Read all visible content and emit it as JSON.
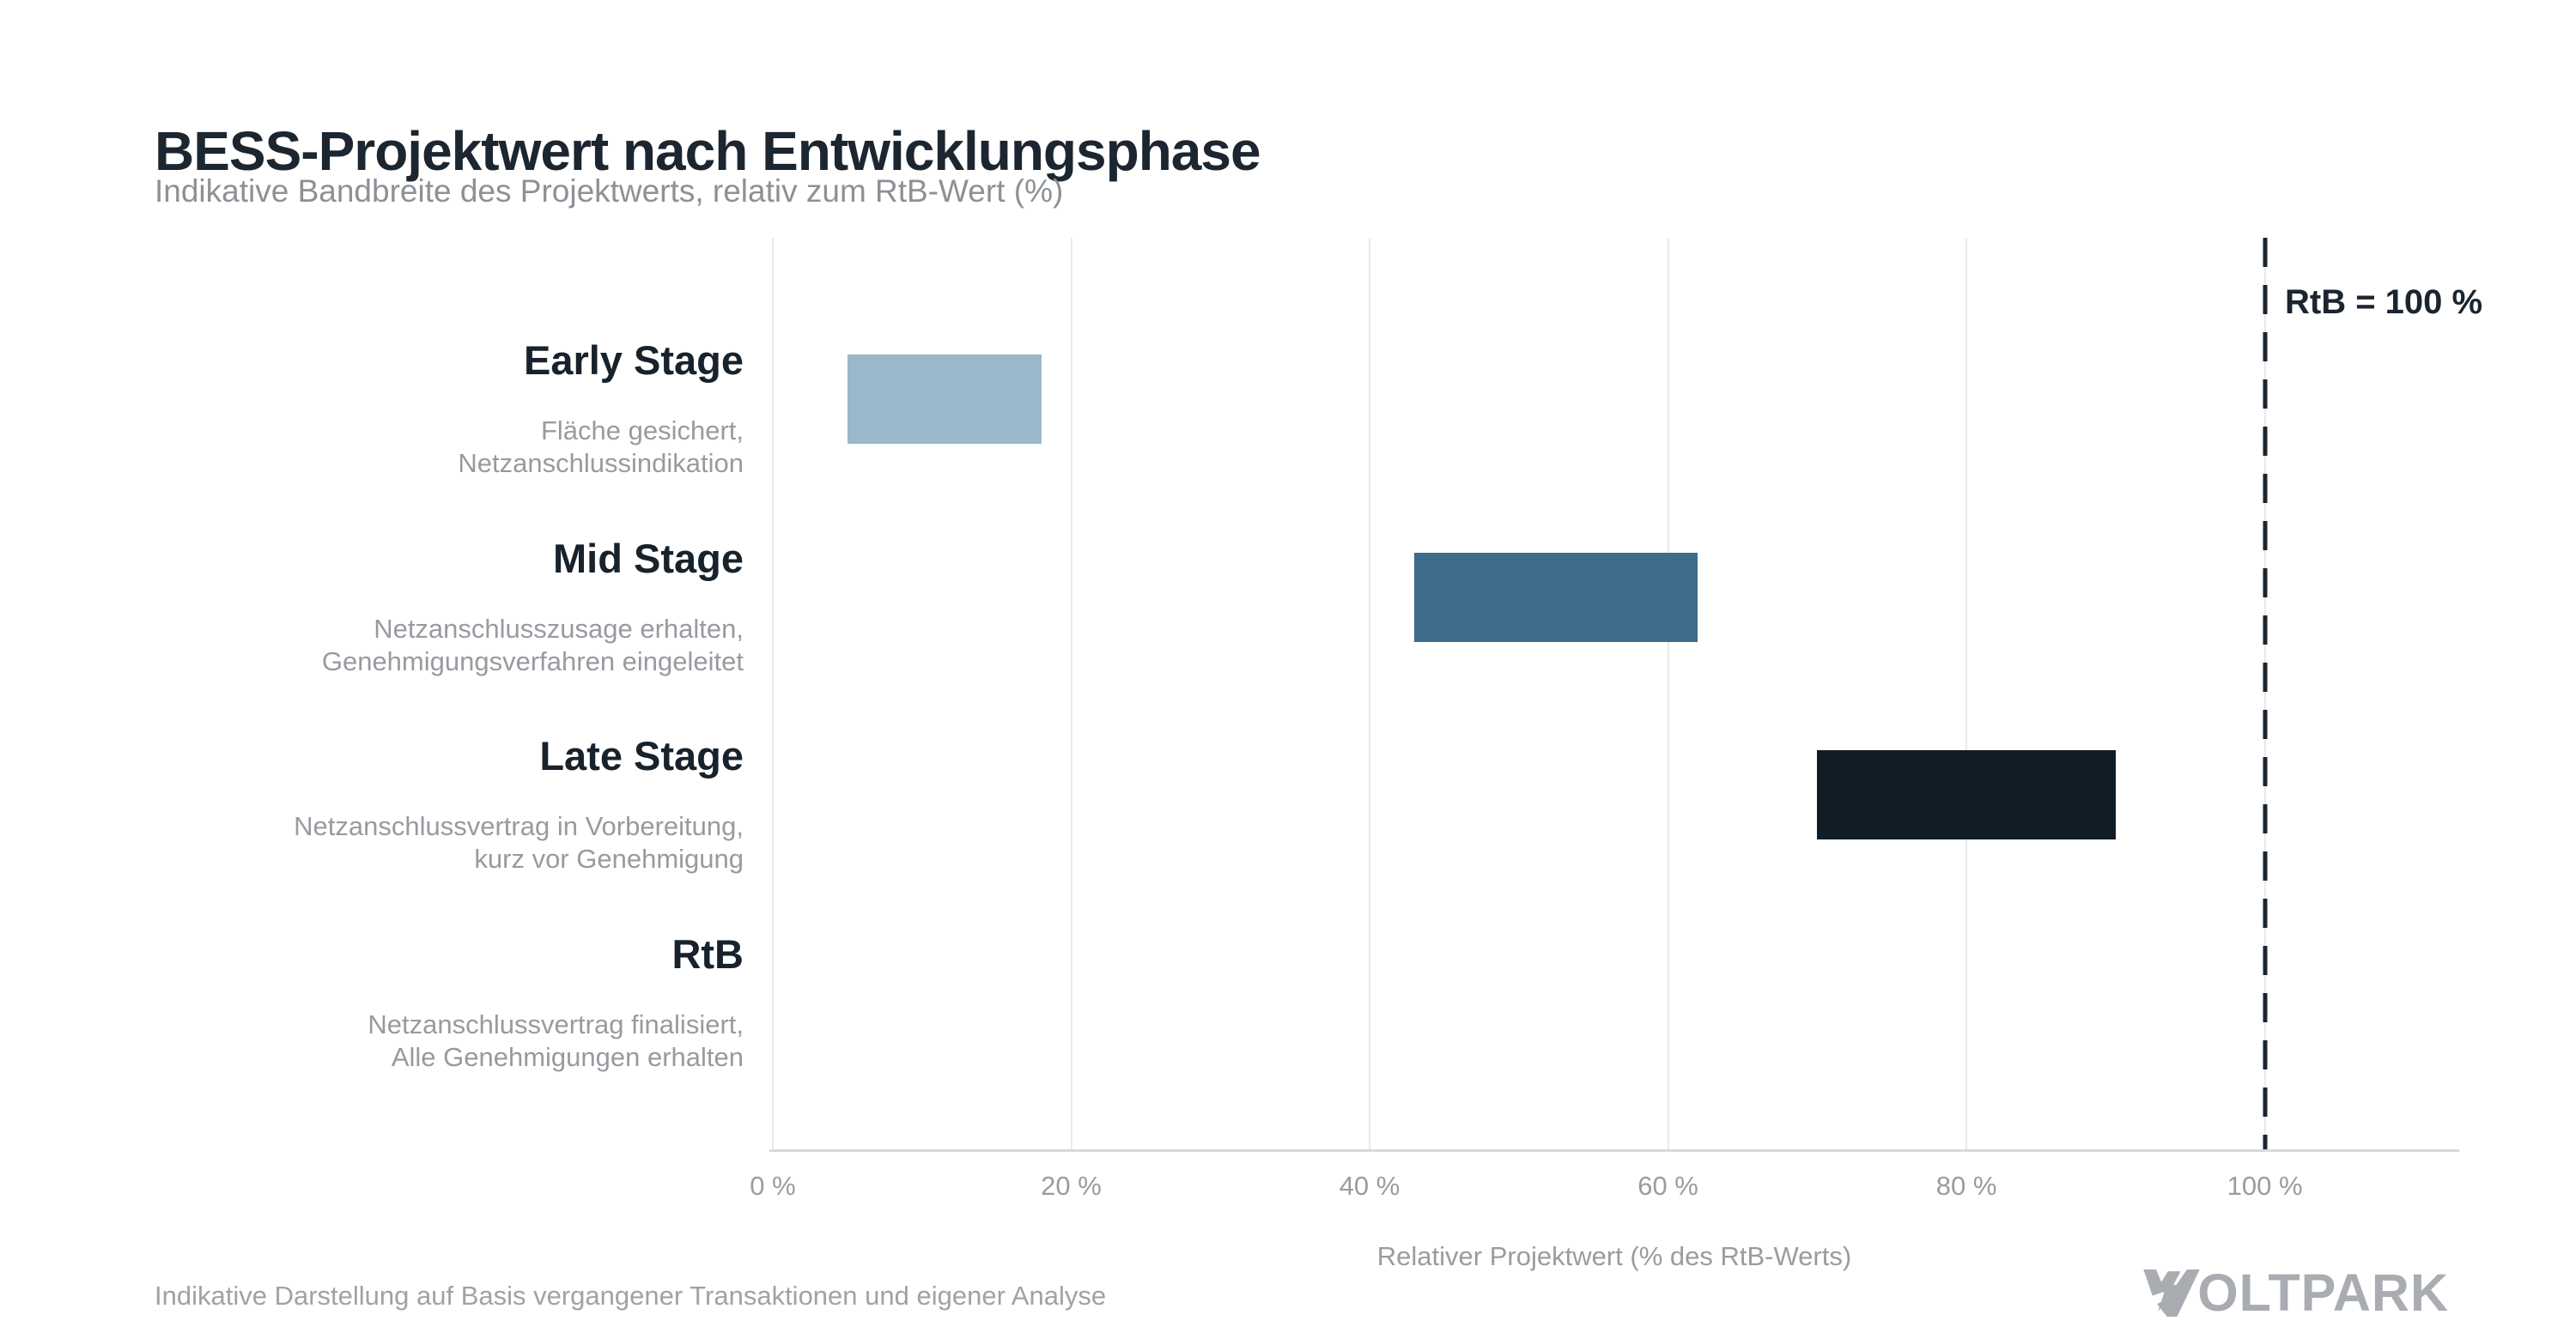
{
  "header": {
    "title": "BESS-Projektwert nach Entwicklungsphase",
    "subtitle": "Indikative Bandbreite des Projektwerts, relativ zum RtB-Wert (%)"
  },
  "chart_data": {
    "type": "bar",
    "variant": "horizontal-range-bars",
    "title": "BESS-Projektwert nach Entwicklungsphase",
    "subtitle": "Indikative Bandbreite des Projektwerts, relativ zum RtB-Wert (%)",
    "categories": [
      {
        "label": "Early Stage",
        "description": [
          "Fläche gesichert,",
          "Netzanschlussindikation"
        ],
        "value_range_pct": [
          5,
          18
        ],
        "bar_color": "#9bb7ca"
      },
      {
        "label": "Mid Stage",
        "description": [
          "Netzanschlusszusage erhalten,",
          "Genehmigungsverfahren eingeleitet"
        ],
        "value_range_pct": [
          43,
          62
        ],
        "bar_color": "#3e6d8c"
      },
      {
        "label": "Late Stage",
        "description": [
          "Netzanschlussvertrag in Vorbereitung,",
          "kurz vor Genehmigung"
        ],
        "value_range_pct": [
          70,
          90
        ],
        "bar_color": "#101c26"
      },
      {
        "label": "RtB",
        "description": [
          "Netzanschlussvertrag finalisiert,",
          "Alle Genehmigungen erhalten"
        ],
        "value_range_pct": null,
        "bar_color": null
      }
    ],
    "x_axis": {
      "label": "Relativer Projektwert (% des RtB-Werts)",
      "tick_values": [
        0,
        20,
        40,
        60,
        80,
        100
      ],
      "tick_labels": [
        "0 %",
        "20 %",
        "40 %",
        "60 %",
        "80 %",
        "100 %"
      ],
      "range": [
        0,
        112.8
      ],
      "grid": true
    },
    "reference_line": {
      "value_pct": 100,
      "label": "RtB = 100 %",
      "style": "dashed"
    },
    "legend": null
  },
  "footer": {
    "note": "Indikative Darstellung auf Basis vergangener Transaktionen und eigener Analyse",
    "logo_text": "VOLTPARK"
  },
  "colors": {
    "title_text": "#1c2630",
    "subtitle_text": "#8d9196",
    "category_text": "#17222c",
    "description_text": "#979ba0",
    "axis_text": "#9b9ba0",
    "gridline": "#e9e9e9",
    "baseline": "#d9d9d9",
    "reference_line": "#1a2530",
    "bar_early": "#9bb7ca",
    "bar_mid": "#3e6d8c",
    "bar_late": "#101c26",
    "logo": "#a9adb2"
  }
}
